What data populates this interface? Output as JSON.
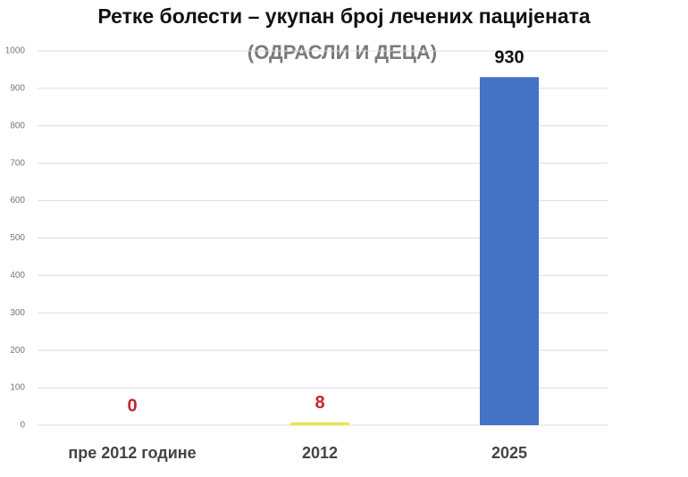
{
  "chart_data": {
    "type": "bar",
    "title": "Ретке болести – укупан број лечених пацијената",
    "subtitle": "(ОДРАСЛИ И ДЕЦА)",
    "categories": [
      "пре 2012 године",
      "2012",
      "2025"
    ],
    "values": [
      0,
      8,
      930
    ],
    "colors": [
      "#e8e84a",
      "#e8e84a",
      "#4472c4"
    ],
    "label_colors": [
      "#c0262d",
      "#c0262d",
      "#111111"
    ],
    "ylim": [
      0,
      1000
    ],
    "yticks": [
      0,
      100,
      200,
      300,
      400,
      500,
      600,
      700,
      800,
      900,
      1000
    ],
    "grid": true
  }
}
